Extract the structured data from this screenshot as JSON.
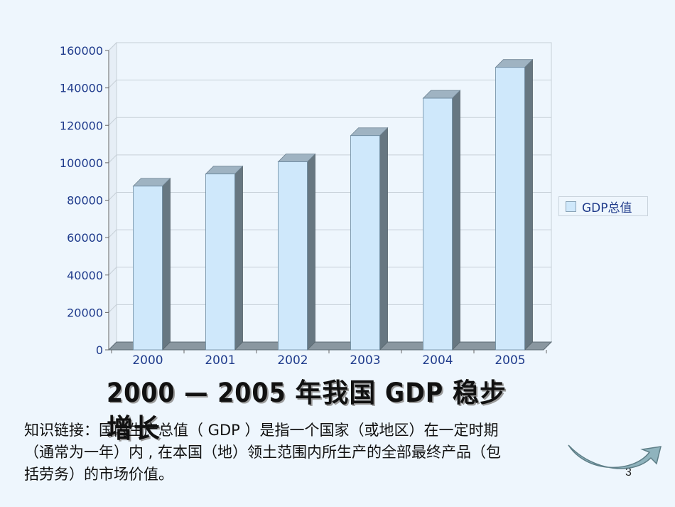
{
  "chart_data": {
    "type": "bar",
    "categories": [
      "2000",
      "2001",
      "2002",
      "2003",
      "2004",
      "2005"
    ],
    "series": [
      {
        "name": "GDP总值",
        "values": [
          87500,
          94000,
          100500,
          114500,
          134500,
          151000
        ]
      }
    ],
    "y_ticks": [
      "0",
      "20000",
      "40000",
      "60000",
      "80000",
      "100000",
      "120000",
      "140000",
      "160000"
    ],
    "ylim": [
      0,
      160000
    ],
    "grid": true,
    "legend_position": "right",
    "style": "3d-column"
  },
  "title": "2000 — 2005 年我国 GDP 稳步增长",
  "body_text": "知识链接：国内生产总值（ GDP ）是指一个国家（或地区）在一定时期（通常为一年）内 , 在本国（地）领土范围内所生产的全部最终产品（包括劳务）的市场价值。",
  "page_number": "3",
  "colors": {
    "bar_face": "#cfe8fb",
    "bar_side": "#677781",
    "bar_top": "#9fb3c2",
    "grid": "#c7d0d8",
    "axis_text": "#1f3b8c"
  }
}
